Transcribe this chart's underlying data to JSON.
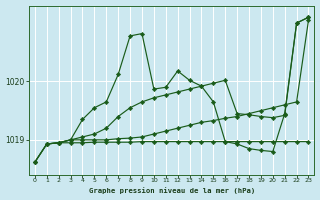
{
  "background_color": "#cce8f0",
  "grid_color": "#ffffff",
  "line_color": "#1a5c1a",
  "title": "Graphe pression niveau de la mer (hPa)",
  "ylim": [
    1018.4,
    1021.3
  ],
  "xlim": [
    -0.5,
    23.5
  ],
  "yticks": [
    1019,
    1020
  ],
  "xticks": [
    0,
    1,
    2,
    3,
    4,
    5,
    6,
    7,
    8,
    9,
    10,
    11,
    12,
    13,
    14,
    15,
    16,
    17,
    18,
    19,
    20,
    21,
    22,
    23
  ],
  "line1_x": [
    0,
    1,
    2,
    3,
    4,
    5,
    6,
    7,
    8,
    9,
    10,
    11,
    12,
    13,
    14,
    15,
    16,
    17,
    18,
    19,
    20,
    21,
    22,
    23
  ],
  "line1_y": [
    1018.62,
    1018.93,
    1018.95,
    1018.95,
    1018.95,
    1018.96,
    1018.96,
    1018.96,
    1018.96,
    1018.97,
    1018.97,
    1018.97,
    1018.97,
    1018.97,
    1018.97,
    1018.97,
    1018.97,
    1018.97,
    1018.97,
    1018.97,
    1018.97,
    1018.97,
    1018.97,
    1018.97
  ],
  "line2_x": [
    1,
    2,
    3,
    4,
    5,
    6,
    7,
    8,
    9,
    10,
    11,
    12,
    13,
    14,
    15,
    16,
    17,
    18,
    19,
    20,
    21,
    22,
    23
  ],
  "line2_y": [
    1018.93,
    1018.95,
    1019.0,
    1019.0,
    1019.0,
    1019.0,
    1019.02,
    1019.03,
    1019.05,
    1019.1,
    1019.15,
    1019.2,
    1019.25,
    1019.3,
    1019.33,
    1019.37,
    1019.4,
    1019.45,
    1019.5,
    1019.55,
    1019.6,
    1019.65,
    1021.05
  ],
  "line3_x": [
    0,
    1,
    2,
    3,
    4,
    5,
    6,
    7,
    8,
    9,
    10,
    11,
    12,
    13,
    14,
    15,
    16,
    17,
    18,
    19,
    20,
    21,
    22,
    23
  ],
  "line3_y": [
    1018.62,
    1018.93,
    1018.95,
    1019.0,
    1019.05,
    1019.1,
    1019.2,
    1019.4,
    1019.55,
    1019.65,
    1019.72,
    1019.77,
    1019.82,
    1019.87,
    1019.92,
    1019.97,
    1020.02,
    1019.45,
    1019.43,
    1019.4,
    1019.38,
    1019.42,
    1021.0,
    1021.1
  ],
  "line4_x": [
    0,
    1,
    2,
    3,
    4,
    5,
    6,
    7,
    8,
    9,
    10,
    11,
    12,
    13,
    14,
    15,
    16,
    17,
    18,
    19,
    20,
    21,
    22,
    23
  ],
  "line4_y": [
    1018.62,
    1018.93,
    1018.95,
    1019.0,
    1019.35,
    1019.55,
    1019.65,
    1020.12,
    1020.78,
    1020.82,
    1019.87,
    1019.9,
    1020.18,
    1020.02,
    1019.92,
    1019.65,
    1018.97,
    1018.93,
    1018.85,
    1018.82,
    1018.8,
    1019.45,
    1021.0,
    1021.1
  ]
}
